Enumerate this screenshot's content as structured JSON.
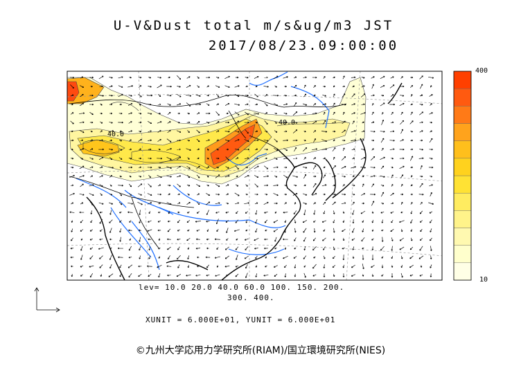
{
  "title_line1": "U-V&Dust total m/s&ug/m3 JST",
  "title_line2": "2017/08/23.09:00:00",
  "legend": {
    "levels_line1": "lev= 10.0 20.0 40.0 60.0 100. 150. 200.",
    "levels_line2": "300. 400.",
    "units_line": "XUNIT = 6.000E+01, YUNIT = 6.000E+01",
    "colorbar_max": "400",
    "colorbar_min": "10"
  },
  "contour_labels": [
    "40.0",
    "40.0"
  ],
  "colorbar_colors": [
    "#ffffe6",
    "#ffffcc",
    "#fff9b0",
    "#fff38a",
    "#ffec60",
    "#ffe234",
    "#ffd21e",
    "#ffbf1c",
    "#ffa31c",
    "#ff7a17",
    "#ff5a10",
    "#ff4000"
  ],
  "credit": "©九州大学応用力学研究所(RIAM)/国立環境研究所(NIES)"
}
